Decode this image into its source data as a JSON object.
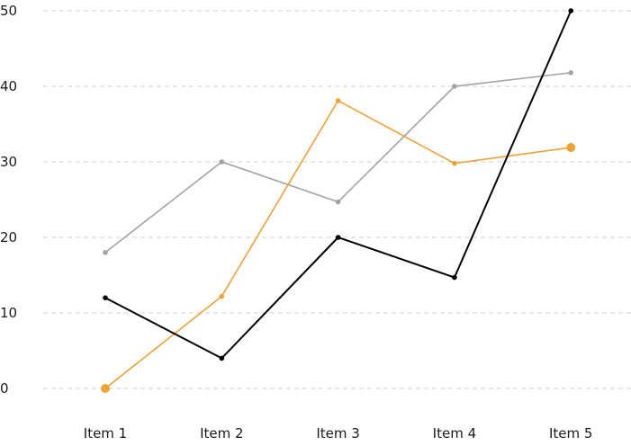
{
  "chart_data": {
    "type": "line",
    "title": "",
    "xlabel": "",
    "ylabel": "",
    "categories": [
      "Item 1",
      "Item 2",
      "Item 3",
      "Item 4",
      "Item 5"
    ],
    "ylim": [
      0,
      50
    ],
    "yticks": [
      0,
      10,
      20,
      30,
      40,
      50
    ],
    "grid": true,
    "legend": "none",
    "series": [
      {
        "values": [
          18,
          30,
          24.7,
          40,
          41.8
        ],
        "color": "#a3a3a3"
      },
      {
        "values": [
          0,
          12.2,
          38.1,
          29.8,
          31.9
        ],
        "color": "#f0a235"
      },
      {
        "values": [
          12,
          4,
          20,
          14.7,
          50
        ],
        "color": "#000000"
      }
    ]
  }
}
